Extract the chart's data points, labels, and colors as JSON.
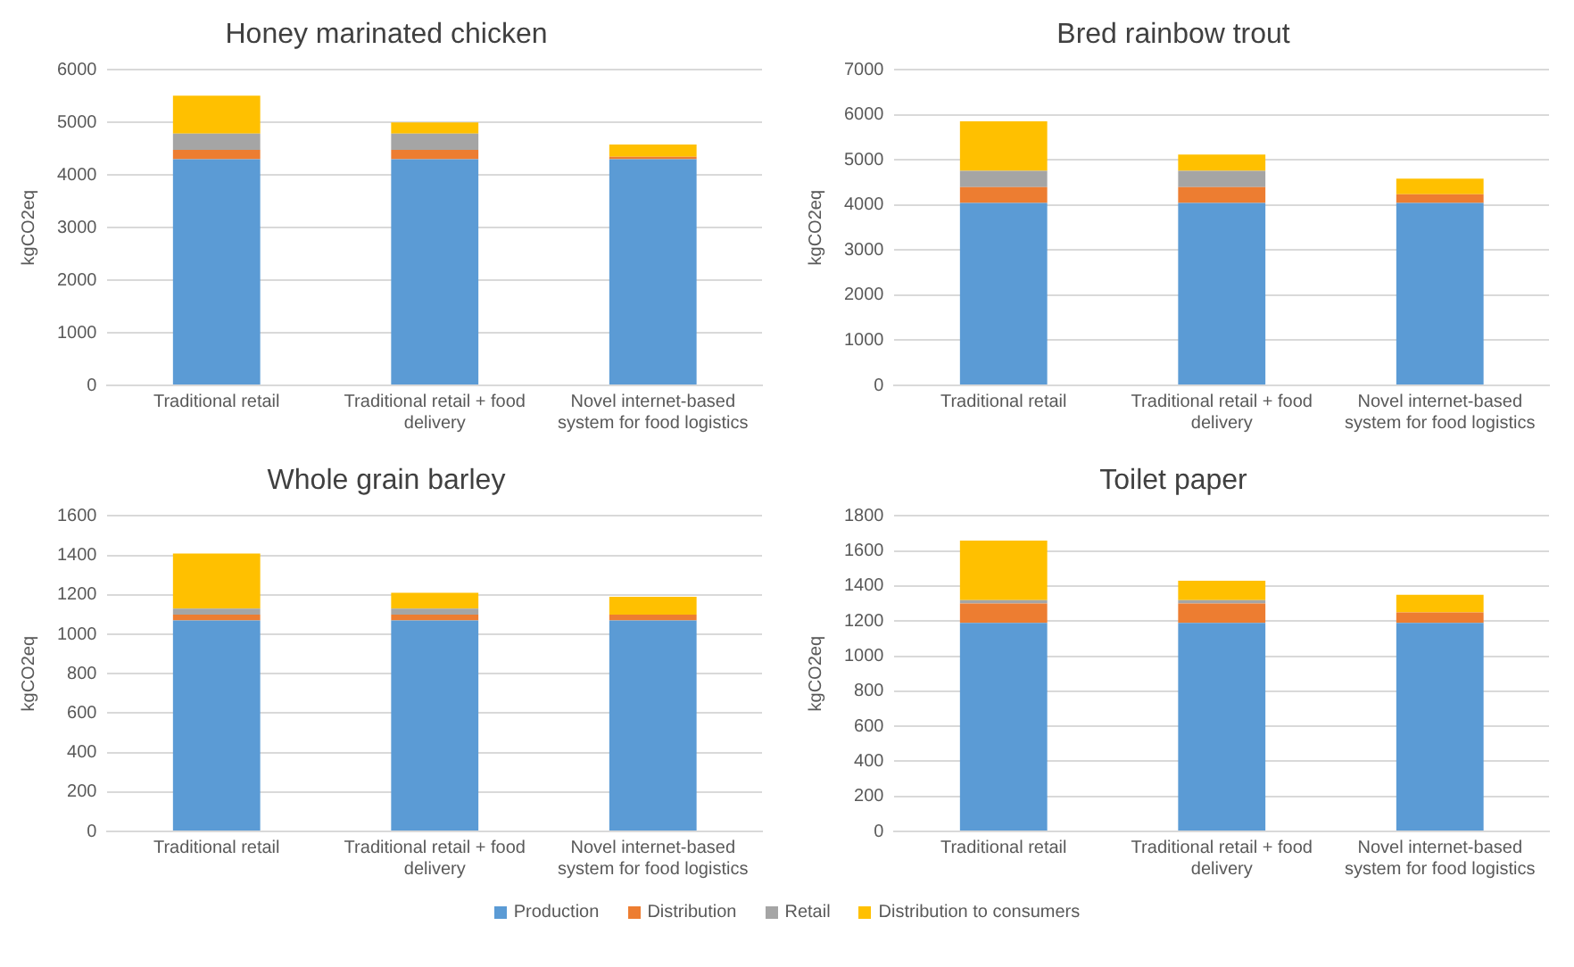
{
  "chart_data": [
    {
      "type": "bar",
      "title": "Honey marinated chicken",
      "ylabel": "kgCO2eq",
      "categories": [
        "Traditional retail",
        "Traditional retail + food delivery",
        "Novel internet-based system for food logistics"
      ],
      "stacked": true,
      "ylim": [
        0,
        6000
      ],
      "yticks": [
        0,
        1000,
        2000,
        3000,
        4000,
        5000,
        6000
      ],
      "grid": "y",
      "legend": "bottom",
      "series": [
        {
          "name": "Production",
          "color": "#5b9bd5",
          "values": [
            4300,
            4300,
            4300
          ]
        },
        {
          "name": "Distribution",
          "color": "#ed7d31",
          "values": [
            180,
            180,
            50
          ]
        },
        {
          "name": "Retail",
          "color": "#a5a5a5",
          "values": [
            310,
            310,
            0
          ]
        },
        {
          "name": "Distribution to consumers",
          "color": "#ffc000",
          "values": [
            720,
            210,
            230
          ]
        }
      ]
    },
    {
      "type": "bar",
      "title": "Bred rainbow trout",
      "ylabel": "kgCO2eq",
      "categories": [
        "Traditional retail",
        "Traditional retail + food delivery",
        "Novel internet-based system for food logistics"
      ],
      "stacked": true,
      "ylim": [
        0,
        7000
      ],
      "yticks": [
        0,
        1000,
        2000,
        3000,
        4000,
        5000,
        6000,
        7000
      ],
      "grid": "y",
      "legend": "bottom",
      "series": [
        {
          "name": "Production",
          "color": "#5b9bd5",
          "values": [
            4050,
            4050,
            4050
          ]
        },
        {
          "name": "Distribution",
          "color": "#ed7d31",
          "values": [
            350,
            350,
            190
          ]
        },
        {
          "name": "Retail",
          "color": "#a5a5a5",
          "values": [
            360,
            360,
            0
          ]
        },
        {
          "name": "Distribution to consumers",
          "color": "#ffc000",
          "values": [
            1100,
            360,
            350
          ]
        }
      ]
    },
    {
      "type": "bar",
      "title": "Whole grain barley",
      "ylabel": "kgCO2eq",
      "categories": [
        "Traditional retail",
        "Traditional retail + food delivery",
        "Novel internet-based system for food logistics"
      ],
      "stacked": true,
      "ylim": [
        0,
        1600
      ],
      "yticks": [
        0,
        200,
        400,
        600,
        800,
        1000,
        1200,
        1400,
        1600
      ],
      "grid": "y",
      "legend": "bottom",
      "series": [
        {
          "name": "Production",
          "color": "#5b9bd5",
          "values": [
            1070,
            1070,
            1070
          ]
        },
        {
          "name": "Distribution",
          "color": "#ed7d31",
          "values": [
            30,
            30,
            30
          ]
        },
        {
          "name": "Retail",
          "color": "#a5a5a5",
          "values": [
            30,
            30,
            0
          ]
        },
        {
          "name": "Distribution to consumers",
          "color": "#ffc000",
          "values": [
            280,
            80,
            90
          ]
        }
      ]
    },
    {
      "type": "bar",
      "title": "Toilet paper",
      "ylabel": "kgCO2eq",
      "categories": [
        "Traditional retail",
        "Traditional retail + food delivery",
        "Novel internet-based system for food logistics"
      ],
      "stacked": true,
      "ylim": [
        0,
        1800
      ],
      "yticks": [
        0,
        200,
        400,
        600,
        800,
        1000,
        1200,
        1400,
        1600,
        1800
      ],
      "grid": "y",
      "legend": "bottom",
      "series": [
        {
          "name": "Production",
          "color": "#5b9bd5",
          "values": [
            1190,
            1190,
            1190
          ]
        },
        {
          "name": "Distribution",
          "color": "#ed7d31",
          "values": [
            110,
            110,
            60
          ]
        },
        {
          "name": "Retail",
          "color": "#a5a5a5",
          "values": [
            20,
            20,
            0
          ]
        },
        {
          "name": "Distribution to consumers",
          "color": "#ffc000",
          "values": [
            340,
            110,
            100
          ]
        }
      ]
    }
  ]
}
